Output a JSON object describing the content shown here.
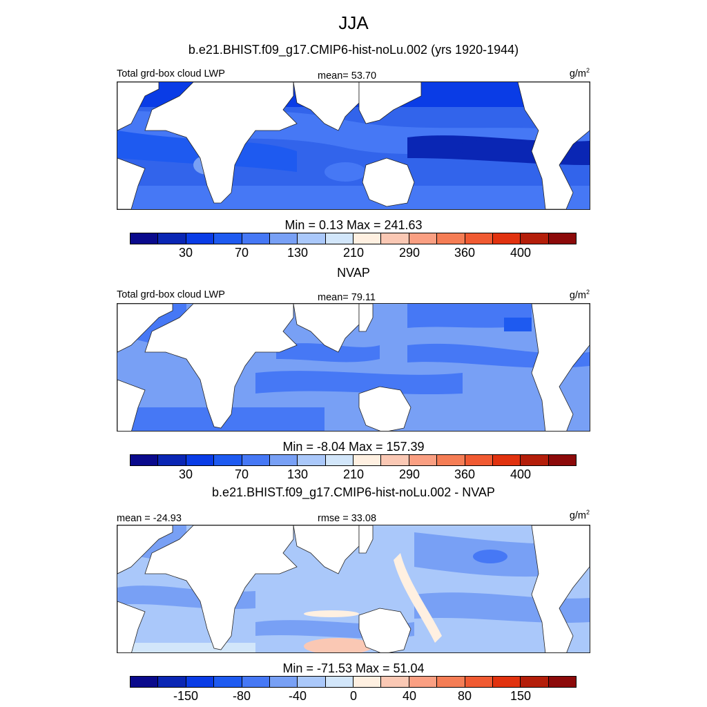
{
  "title": "JJA",
  "colorbar_colors": [
    "#0a0a8c",
    "#0a26b4",
    "#0a3ce6",
    "#1e5af0",
    "#4678f5",
    "#78a0f5",
    "#aac8fa",
    "#d2e6fa",
    "#fff0e1",
    "#fac8b4",
    "#fa9f82",
    "#f57d55",
    "#f05a32",
    "#e1320f",
    "#b41e0a",
    "#8c0a0a"
  ],
  "panels": [
    {
      "id": "model",
      "header": "b.e21.BHIST.f09_g17.CMIP6-hist-noLu.002 (yrs 1920-1944)",
      "left_label": "Total grd-box cloud LWP",
      "center_label": "mean=  53.70",
      "units": "g/m",
      "units_sup": "2",
      "minmax": "Min =   0.13 Max = 241.63",
      "ticks": [
        "30",
        "70",
        "130",
        "210",
        "290",
        "360",
        "400"
      ]
    },
    {
      "id": "obs",
      "header": "NVAP",
      "left_label": "Total grd-box cloud LWP",
      "center_label": "mean=  79.11",
      "units": "g/m",
      "units_sup": "2",
      "minmax": "Min =  -8.04 Max = 157.39",
      "ticks": [
        "30",
        "70",
        "130",
        "210",
        "290",
        "360",
        "400"
      ]
    },
    {
      "id": "diff",
      "header": "b.e21.BHIST.f09_g17.CMIP6-hist-noLu.002 - NVAP",
      "left_label": "mean = -24.93",
      "center_label": "rmse =  33.08",
      "units": "g/m",
      "units_sup": "2",
      "minmax": "Min = -71.53 Max =  51.04",
      "ticks": [
        "-150",
        "-80",
        "-40",
        "0",
        "40",
        "80",
        "150"
      ]
    }
  ]
}
